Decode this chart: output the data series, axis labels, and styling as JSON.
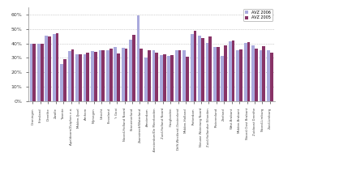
{
  "categories": [
    "Groningen",
    "Friesland",
    "Drenthe",
    "Zwolle",
    "Twente",
    "Apeldoorn/Zutphen e.o.",
    "Midden-IJssel",
    "Arnhem",
    "Nijmegen",
    "Utrecht",
    "Flevoland",
    "'t Gooi",
    "Noord-Holland Noord",
    "Kennemerland",
    "Zaanstreek/Waterland",
    "Amsterdam",
    "Amsterdam/De Meerlanden",
    "Zuid-Holland Noord",
    "Haaglanden",
    "Delft-Westland-Oostenland",
    "Midden-Holland",
    "Rotterdam",
    "Nieuwe Waterweg Noord",
    "Zuid-Hollandse Eilanden",
    "Rivierenland",
    "Zeeland",
    "West-Brabant",
    "Midden-Brabant",
    "Noord-Oost Brabant",
    "Zuidoost Drenthe",
    "Noord-Limburg",
    "Zuid-Limburg"
  ],
  "avz2006": [
    39.5,
    39.5,
    45.5,
    46.5,
    26.0,
    34.5,
    32.5,
    32.5,
    34.5,
    35.5,
    35.5,
    37.5,
    37.0,
    42.5,
    59.0,
    30.5,
    35.0,
    32.0,
    31.5,
    35.0,
    35.0,
    46.5,
    45.5,
    40.5,
    37.5,
    31.5,
    41.5,
    35.5,
    40.5,
    38.5,
    35.0,
    35.5
  ],
  "avz2005": [
    40.0,
    40.0,
    45.0,
    47.0,
    29.0,
    36.0,
    32.5,
    33.5,
    34.0,
    35.0,
    36.5,
    33.0,
    36.5,
    46.0,
    36.5,
    35.0,
    33.5,
    32.5,
    32.0,
    35.5,
    31.0,
    48.5,
    43.5,
    44.5,
    37.5,
    38.5,
    42.0,
    36.0,
    41.0,
    36.5,
    38.0,
    33.5
  ],
  "color_2006": "#aaaadd",
  "color_2005": "#883366",
  "ylim": [
    0,
    65
  ],
  "yticks": [
    0,
    10,
    20,
    30,
    40,
    50,
    60
  ],
  "ytick_labels": [
    "0%",
    "10%",
    "20%",
    "30%",
    "40%",
    "50%",
    "60%"
  ],
  "legend_2006": "AVZ 2006",
  "legend_2005": "AVZ 2005",
  "background_color": "#ffffff",
  "grid_color": "#aaaaaa"
}
